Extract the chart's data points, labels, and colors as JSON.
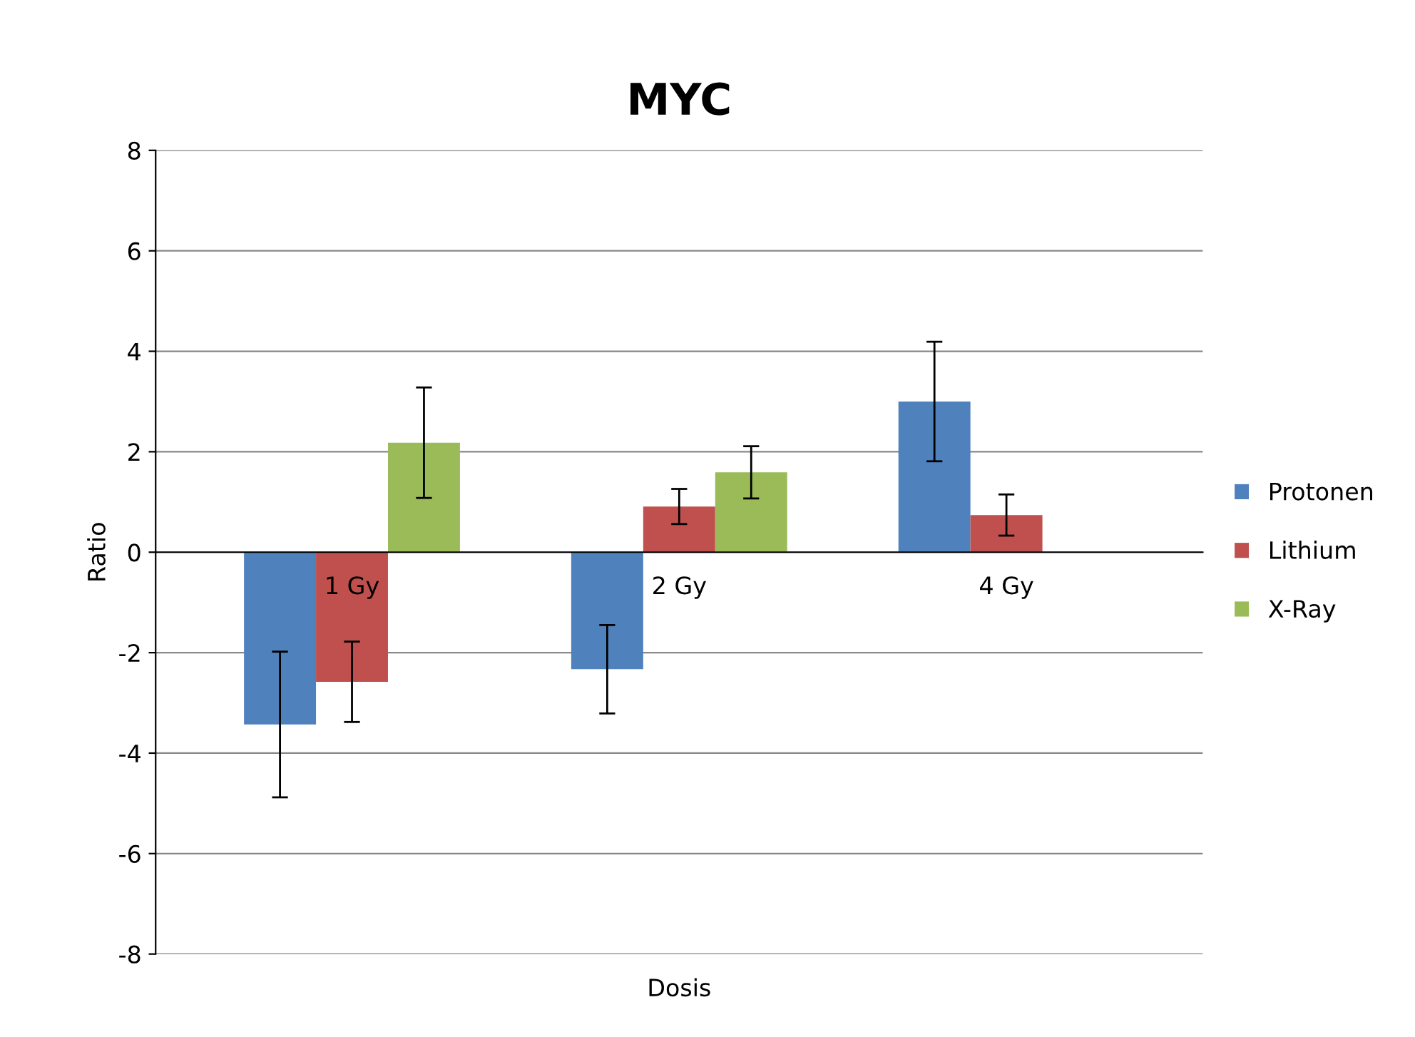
{
  "chart_data": {
    "type": "bar",
    "title": "MYC",
    "xlabel": "Dosis",
    "ylabel": "Ratio",
    "categories": [
      "1 Gy",
      "2 Gy",
      "4 Gy"
    ],
    "series": [
      {
        "name": "Protonen",
        "color": "#4f81bd",
        "values": [
          -3.43,
          -2.33,
          3.0
        ],
        "errors": [
          1.45,
          0.88,
          1.19
        ]
      },
      {
        "name": "Lithium",
        "color": "#c0504d",
        "values": [
          -2.58,
          0.91,
          0.74
        ],
        "errors": [
          0.8,
          0.35,
          0.41
        ]
      },
      {
        "name": "X-Ray",
        "color": "#9bbb59",
        "values": [
          2.18,
          1.59,
          null
        ],
        "errors": [
          1.1,
          0.52,
          null
        ]
      }
    ],
    "ylim": [
      -8,
      8
    ],
    "yticks": [
      -8,
      -6,
      -4,
      -2,
      0,
      2,
      4,
      6,
      8
    ],
    "grid": "y",
    "legend": "right"
  }
}
